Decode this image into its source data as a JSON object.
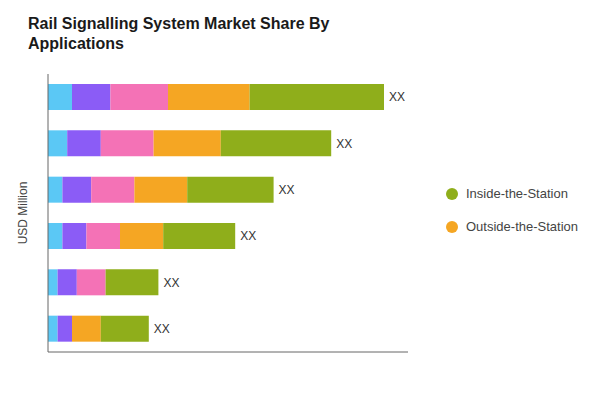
{
  "chart_data": {
    "type": "bar",
    "title": "Rail Signalling System Market Share By\nApplications",
    "ylabel": "USD Million",
    "orientation": "horizontal",
    "stacked": true,
    "grid": false,
    "tick_labels": false,
    "legend": "right",
    "categories": [
      null,
      null,
      null,
      null,
      null,
      null
    ],
    "annotations": [
      "XX",
      "XX",
      "XX",
      "XX",
      "XX",
      "XX"
    ],
    "xlim": [
      0,
      75
    ],
    "series": [
      {
        "color": "#5bc8f5",
        "values": [
          5,
          4,
          3,
          3,
          2,
          2
        ]
      },
      {
        "color": "#8b5cf6",
        "values": [
          8,
          7,
          6,
          5,
          4,
          3
        ]
      },
      {
        "color": "#f472b6",
        "values": [
          12,
          11,
          9,
          7,
          6,
          0
        ]
      },
      {
        "name": "Outside-the-Station",
        "color": "#f5a623",
        "values": [
          17,
          14,
          11,
          9,
          0,
          6
        ]
      },
      {
        "name": "Inside-the-Station",
        "color": "#8fae1b",
        "values": [
          28,
          23,
          18,
          15,
          11,
          10
        ]
      }
    ]
  }
}
